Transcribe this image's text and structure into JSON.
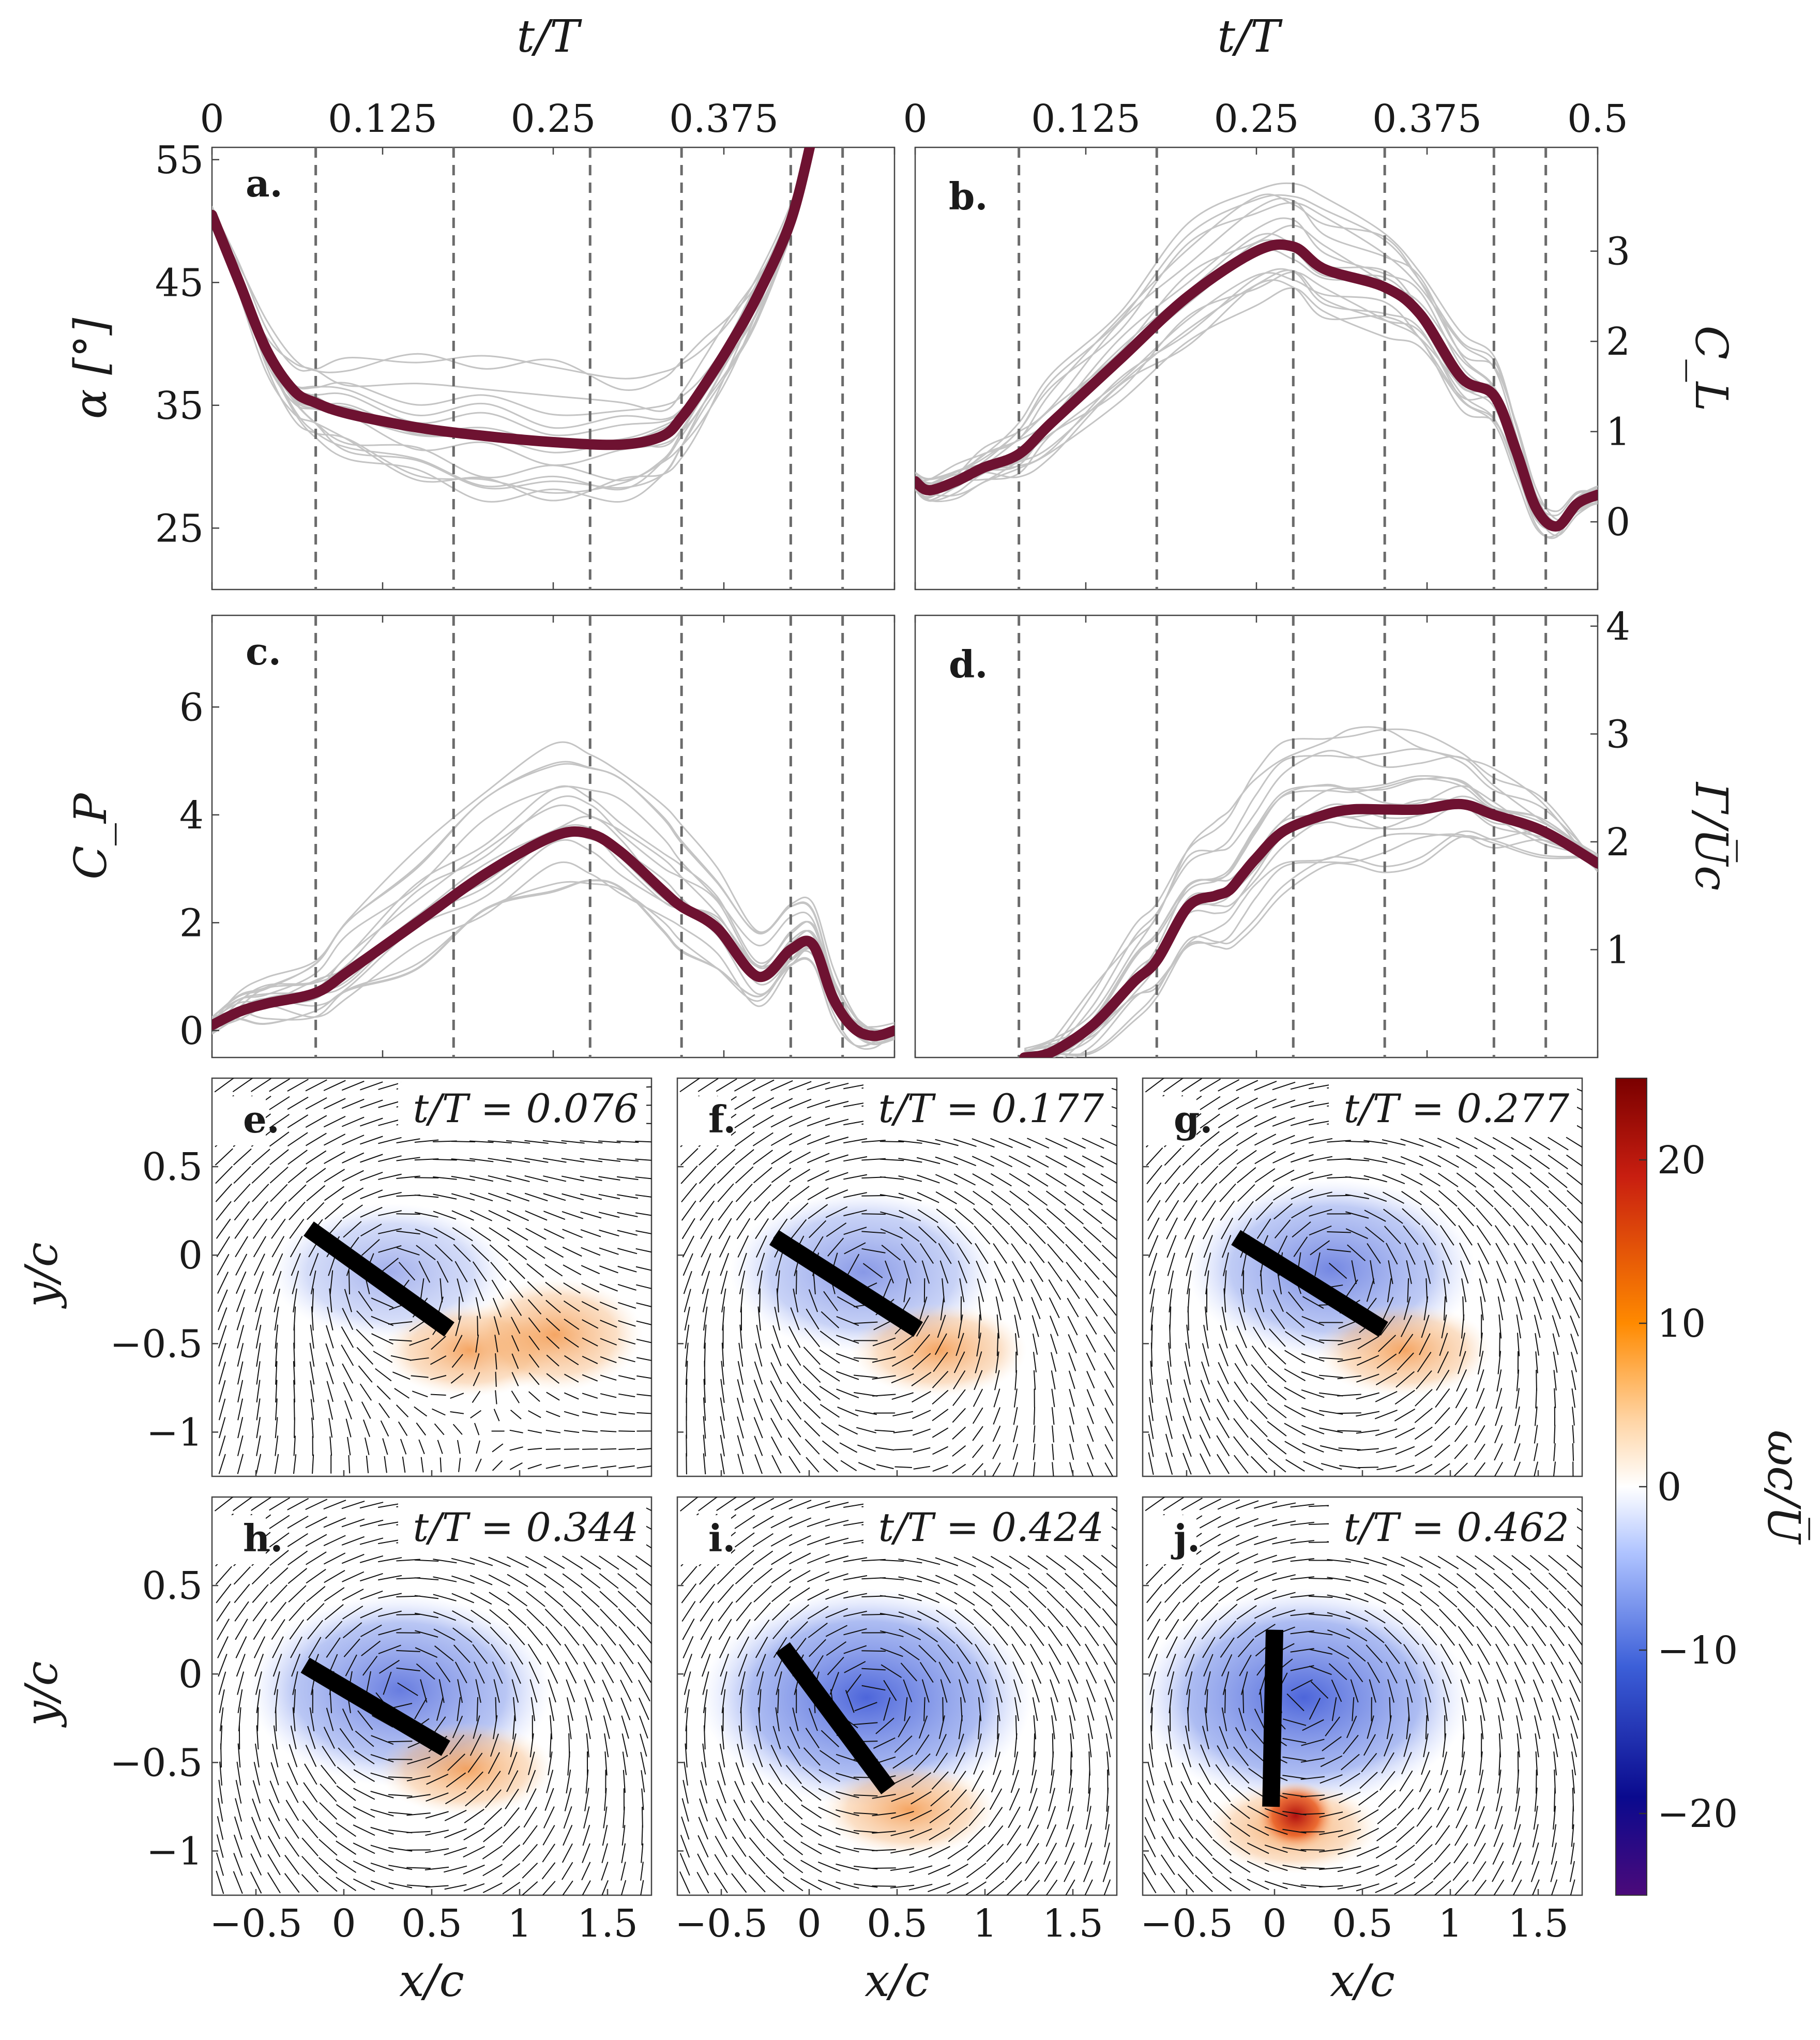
{
  "colors": {
    "mean": "#6e1231",
    "trial": "#c4c4c4",
    "guide": "#6b6b6b",
    "plate": "#000000"
  },
  "top_axis": {
    "label": "t/T",
    "ticks_a": [
      "0",
      "0.125",
      "0.25",
      "0.375"
    ],
    "ticks_b": [
      "0",
      "0.125",
      "0.25",
      "0.375",
      "0.5"
    ]
  },
  "markers": [
    0.076,
    0.177,
    0.277,
    0.344,
    0.424,
    0.462
  ],
  "chart_data": [
    {
      "id": "a",
      "type": "line",
      "panel_label": "a.",
      "ylabel": "α [°]",
      "xlim": [
        0,
        0.5
      ],
      "ylim": [
        20,
        56
      ],
      "yticks": [
        "25",
        "35",
        "45",
        "55"
      ],
      "mean_series": {
        "x": [
          0,
          0.02,
          0.04,
          0.06,
          0.076,
          0.1,
          0.15,
          0.2,
          0.25,
          0.3,
          0.33,
          0.344,
          0.36,
          0.38,
          0.4,
          0.424,
          0.44
        ],
        "y": [
          50.5,
          45,
          39.5,
          36.2,
          35.2,
          34.3,
          33.2,
          32.5,
          32,
          31.8,
          32.5,
          34,
          36.5,
          40,
          44,
          50,
          57
        ]
      }
    },
    {
      "id": "b",
      "type": "line",
      "panel_label": "b.",
      "ylabel": "C_L",
      "xlim": [
        0,
        0.5
      ],
      "ylim": [
        -0.75,
        4.15
      ],
      "yticks": [
        "0",
        "1",
        "2",
        "3"
      ],
      "mean_series": {
        "x": [
          0,
          0.01,
          0.03,
          0.05,
          0.076,
          0.1,
          0.15,
          0.2,
          0.25,
          0.277,
          0.3,
          0.344,
          0.37,
          0.4,
          0.424,
          0.44,
          0.455,
          0.47,
          0.485,
          0.5
        ],
        "y": [
          0.45,
          0.35,
          0.45,
          0.6,
          0.75,
          1.1,
          1.8,
          2.5,
          3,
          3.05,
          2.8,
          2.6,
          2.3,
          1.6,
          1.4,
          0.8,
          0.15,
          -0.05,
          0.2,
          0.3
        ]
      }
    },
    {
      "id": "c",
      "type": "line",
      "panel_label": "c.",
      "ylabel": "C_P",
      "xlim": [
        0,
        0.5
      ],
      "ylim": [
        -0.5,
        7.7
      ],
      "yticks": [
        "0",
        "2",
        "4",
        "6"
      ],
      "mean_series": {
        "x": [
          0,
          0.02,
          0.04,
          0.076,
          0.1,
          0.15,
          0.2,
          0.25,
          0.277,
          0.3,
          0.33,
          0.344,
          0.37,
          0.4,
          0.424,
          0.44,
          0.455,
          0.47,
          0.485,
          0.5
        ],
        "y": [
          0.1,
          0.35,
          0.5,
          0.7,
          1.1,
          2,
          2.9,
          3.6,
          3.65,
          3.3,
          2.6,
          2.3,
          1.9,
          1,
          1.5,
          1.6,
          0.6,
          0.05,
          -0.1,
          0
        ]
      }
    },
    {
      "id": "d",
      "type": "line",
      "panel_label": "d.",
      "ylabel": "Γ/U̅c",
      "xlim": [
        0,
        0.5
      ],
      "ylim": [
        0,
        4.1
      ],
      "yticks": [
        "1",
        "2",
        "3",
        "4"
      ],
      "mean_series": {
        "x": [
          0.08,
          0.1,
          0.13,
          0.16,
          0.177,
          0.2,
          0.22,
          0.23,
          0.24,
          0.25,
          0.27,
          0.3,
          0.32,
          0.344,
          0.37,
          0.4,
          0.424,
          0.46,
          0.5
        ],
        "y": [
          0,
          0.05,
          0.3,
          0.7,
          0.9,
          1.4,
          1.5,
          1.55,
          1.7,
          1.85,
          2.1,
          2.25,
          2.3,
          2.3,
          2.3,
          2.35,
          2.25,
          2.1,
          1.8
        ]
      }
    }
  ],
  "flow_panels": [
    {
      "id": "e",
      "label": "e.",
      "time": "t/T = 0.076",
      "plate": [
        [
          -0.2,
          0.15
        ],
        [
          0.6,
          -0.42
        ]
      ]
    },
    {
      "id": "f",
      "label": "f.",
      "time": "t/T = 0.177",
      "plate": [
        [
          -0.2,
          0.1
        ],
        [
          0.62,
          -0.42
        ]
      ]
    },
    {
      "id": "g",
      "label": "g.",
      "time": "t/T = 0.277",
      "plate": [
        [
          -0.22,
          0.1
        ],
        [
          0.62,
          -0.42
        ]
      ]
    },
    {
      "id": "h",
      "label": "h.",
      "time": "t/T = 0.344",
      "plate": [
        [
          -0.22,
          0.05
        ],
        [
          0.58,
          -0.42
        ]
      ]
    },
    {
      "id": "i",
      "label": "i.",
      "time": "t/T = 0.424",
      "plate": [
        [
          -0.15,
          0.15
        ],
        [
          0.45,
          -0.65
        ]
      ]
    },
    {
      "id": "j",
      "label": "j.",
      "time": "t/T = 0.462",
      "plate": [
        [
          0,
          0.25
        ],
        [
          -0.02,
          -0.75
        ]
      ]
    }
  ],
  "flow_axes": {
    "xlabel": "x/c",
    "ylabel": "y/c",
    "xticks": [
      "−0.5",
      "0",
      "0.5",
      "1",
      "1.5"
    ],
    "yticks": [
      "0.5",
      "0",
      "−0.5",
      "−1"
    ]
  },
  "colorbar": {
    "label": "ωc/U̅",
    "ticks": [
      "20",
      "10",
      "0",
      "−10",
      "−20"
    ],
    "range": [
      -25,
      25
    ]
  }
}
